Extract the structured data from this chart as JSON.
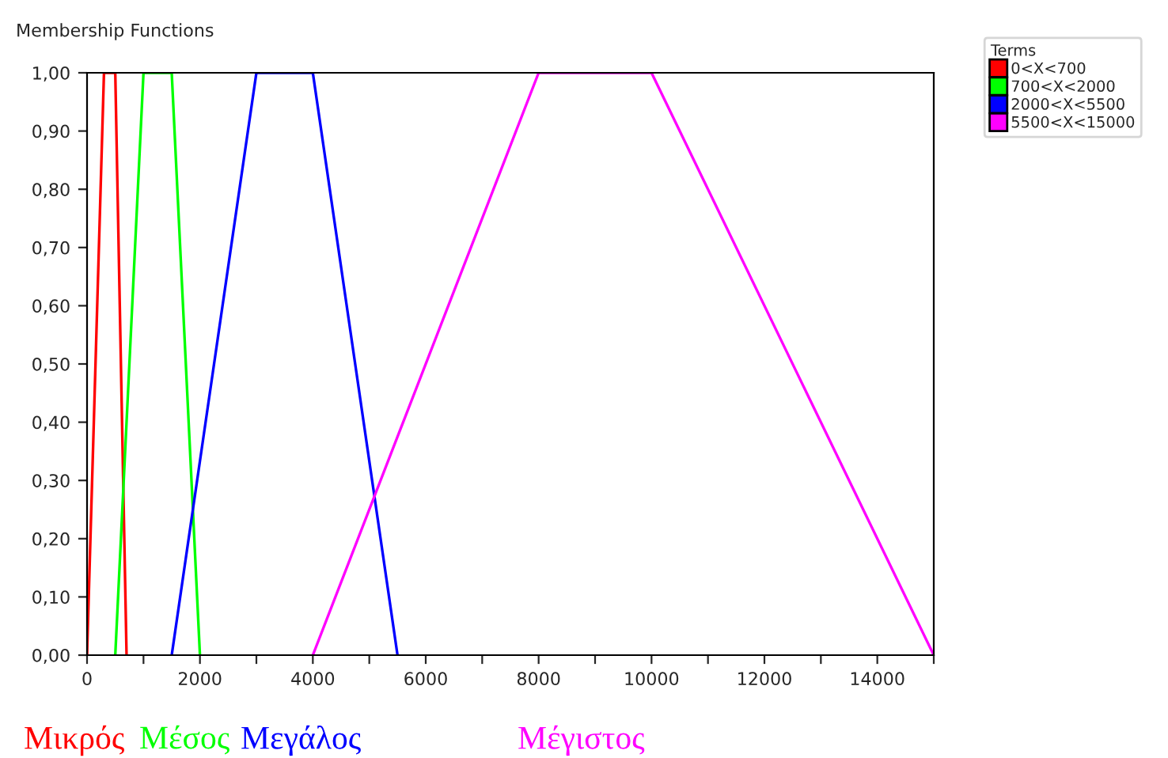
{
  "chart_data": {
    "type": "line",
    "title": "Membership Functions",
    "legend_title": "Terms",
    "series": [
      {
        "name": "0<X<700",
        "color": "#ff0000",
        "x": [
          0,
          300,
          500,
          700
        ],
        "values": [
          0,
          1,
          1,
          0
        ]
      },
      {
        "name": "700<X<2000",
        "color": "#00ff00",
        "x": [
          500,
          1000,
          1500,
          2000
        ],
        "values": [
          0,
          1,
          1,
          0
        ]
      },
      {
        "name": "2000<X<5500",
        "color": "#0000ff",
        "x": [
          1500,
          3000,
          4000,
          5500
        ],
        "values": [
          0,
          1,
          1,
          0
        ]
      },
      {
        "name": "5500<X<15000",
        "color": "#ff00ff",
        "x": [
          4000,
          8000,
          10000,
          15000
        ],
        "values": [
          0,
          1,
          1,
          0
        ]
      }
    ],
    "xlim": [
      0,
      15000
    ],
    "xticks": [
      0,
      {
        "value": 1000,
        "label": null
      },
      2000,
      {
        "value": 3000,
        "label": null
      },
      4000,
      {
        "value": 5000,
        "label": null
      },
      6000,
      {
        "value": 7000,
        "label": null
      },
      8000,
      {
        "value": 9000,
        "label": null
      },
      10000,
      {
        "value": 11000,
        "label": null
      },
      12000,
      {
        "value": 13000,
        "label": null
      },
      14000,
      {
        "value": 15000,
        "label": null
      }
    ],
    "ylim": [
      0,
      1
    ],
    "yticks": [
      {
        "value": 0,
        "label": "0,00"
      },
      {
        "value": 0.1,
        "label": "0,10"
      },
      {
        "value": 0.2,
        "label": "0,20"
      },
      {
        "value": 0.3,
        "label": "0,30"
      },
      {
        "value": 0.4,
        "label": "0,40"
      },
      {
        "value": 0.5,
        "label": "0,50"
      },
      {
        "value": 0.6,
        "label": "0,60"
      },
      {
        "value": 0.7,
        "label": "0,70"
      },
      {
        "value": 0.8,
        "label": "0,80"
      },
      {
        "value": 0.9,
        "label": "0,90"
      },
      {
        "value": 1,
        "label": "1,00"
      }
    ],
    "legend": "right",
    "grid": false,
    "marker": "none",
    "line_style": "solid",
    "annotations": [
      "Μικρός",
      "Μέσος",
      "Μεγάλος",
      "Μέγιστος"
    ]
  }
}
